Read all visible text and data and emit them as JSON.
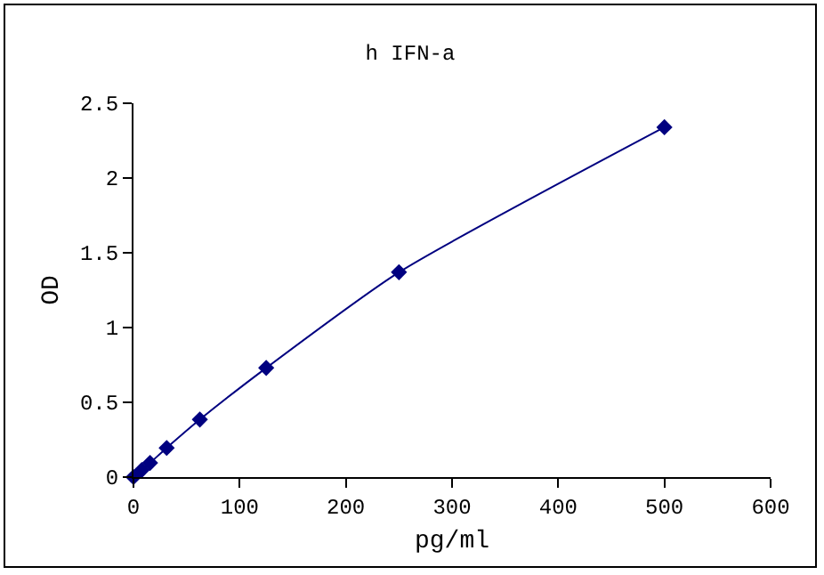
{
  "chart_data": {
    "type": "line",
    "title": "h IFN-a",
    "xlabel": "pg/ml",
    "ylabel": "OD",
    "x": [
      0,
      7.8,
      15.6,
      31.25,
      62.5,
      125,
      250,
      500
    ],
    "series": [
      {
        "color": "#000080",
        "values": [
          0,
          0.047,
          0.095,
          0.195,
          0.385,
          0.73,
          1.37,
          2.34
        ]
      }
    ],
    "xlim": [
      0,
      600
    ],
    "xticks": [
      0,
      100,
      200,
      300,
      400,
      500,
      600
    ],
    "ylim": [
      0,
      2.5
    ],
    "yticks": [
      0,
      0.5,
      1,
      1.5,
      2,
      2.5
    ],
    "grid": false,
    "legend": false,
    "marker": "diamond",
    "line_style": "solid"
  }
}
